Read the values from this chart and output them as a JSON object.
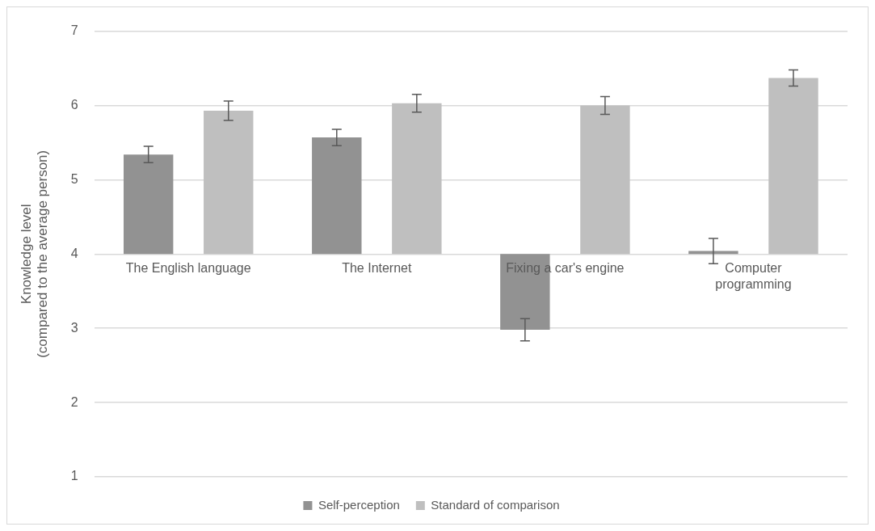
{
  "chart_data": {
    "type": "bar",
    "ylabel": "Knowledge level\n(compared to the average person)",
    "categories": [
      "The English language",
      "The Internet",
      "Fixing a car's engine",
      "Computer\nprogramming"
    ],
    "series": [
      {
        "name": "Self-perception",
        "color": "#929292",
        "base": [
          4,
          4,
          4,
          4
        ],
        "values": [
          1.34,
          1.57,
          -1.02,
          0.04
        ],
        "errors": [
          0.11,
          0.11,
          0.15,
          0.17
        ]
      },
      {
        "name": "Standard of comparison",
        "color": "#bfbfbf",
        "base": [
          4,
          4,
          4,
          4
        ],
        "values": [
          1.93,
          2.03,
          2.0,
          2.37
        ],
        "errors": [
          0.13,
          0.12,
          0.12,
          0.11
        ]
      }
    ],
    "ylim": [
      1,
      7
    ],
    "yticks": [
      1,
      2,
      3,
      4,
      5,
      6,
      7
    ],
    "grid": "y",
    "legend": "bottom"
  }
}
